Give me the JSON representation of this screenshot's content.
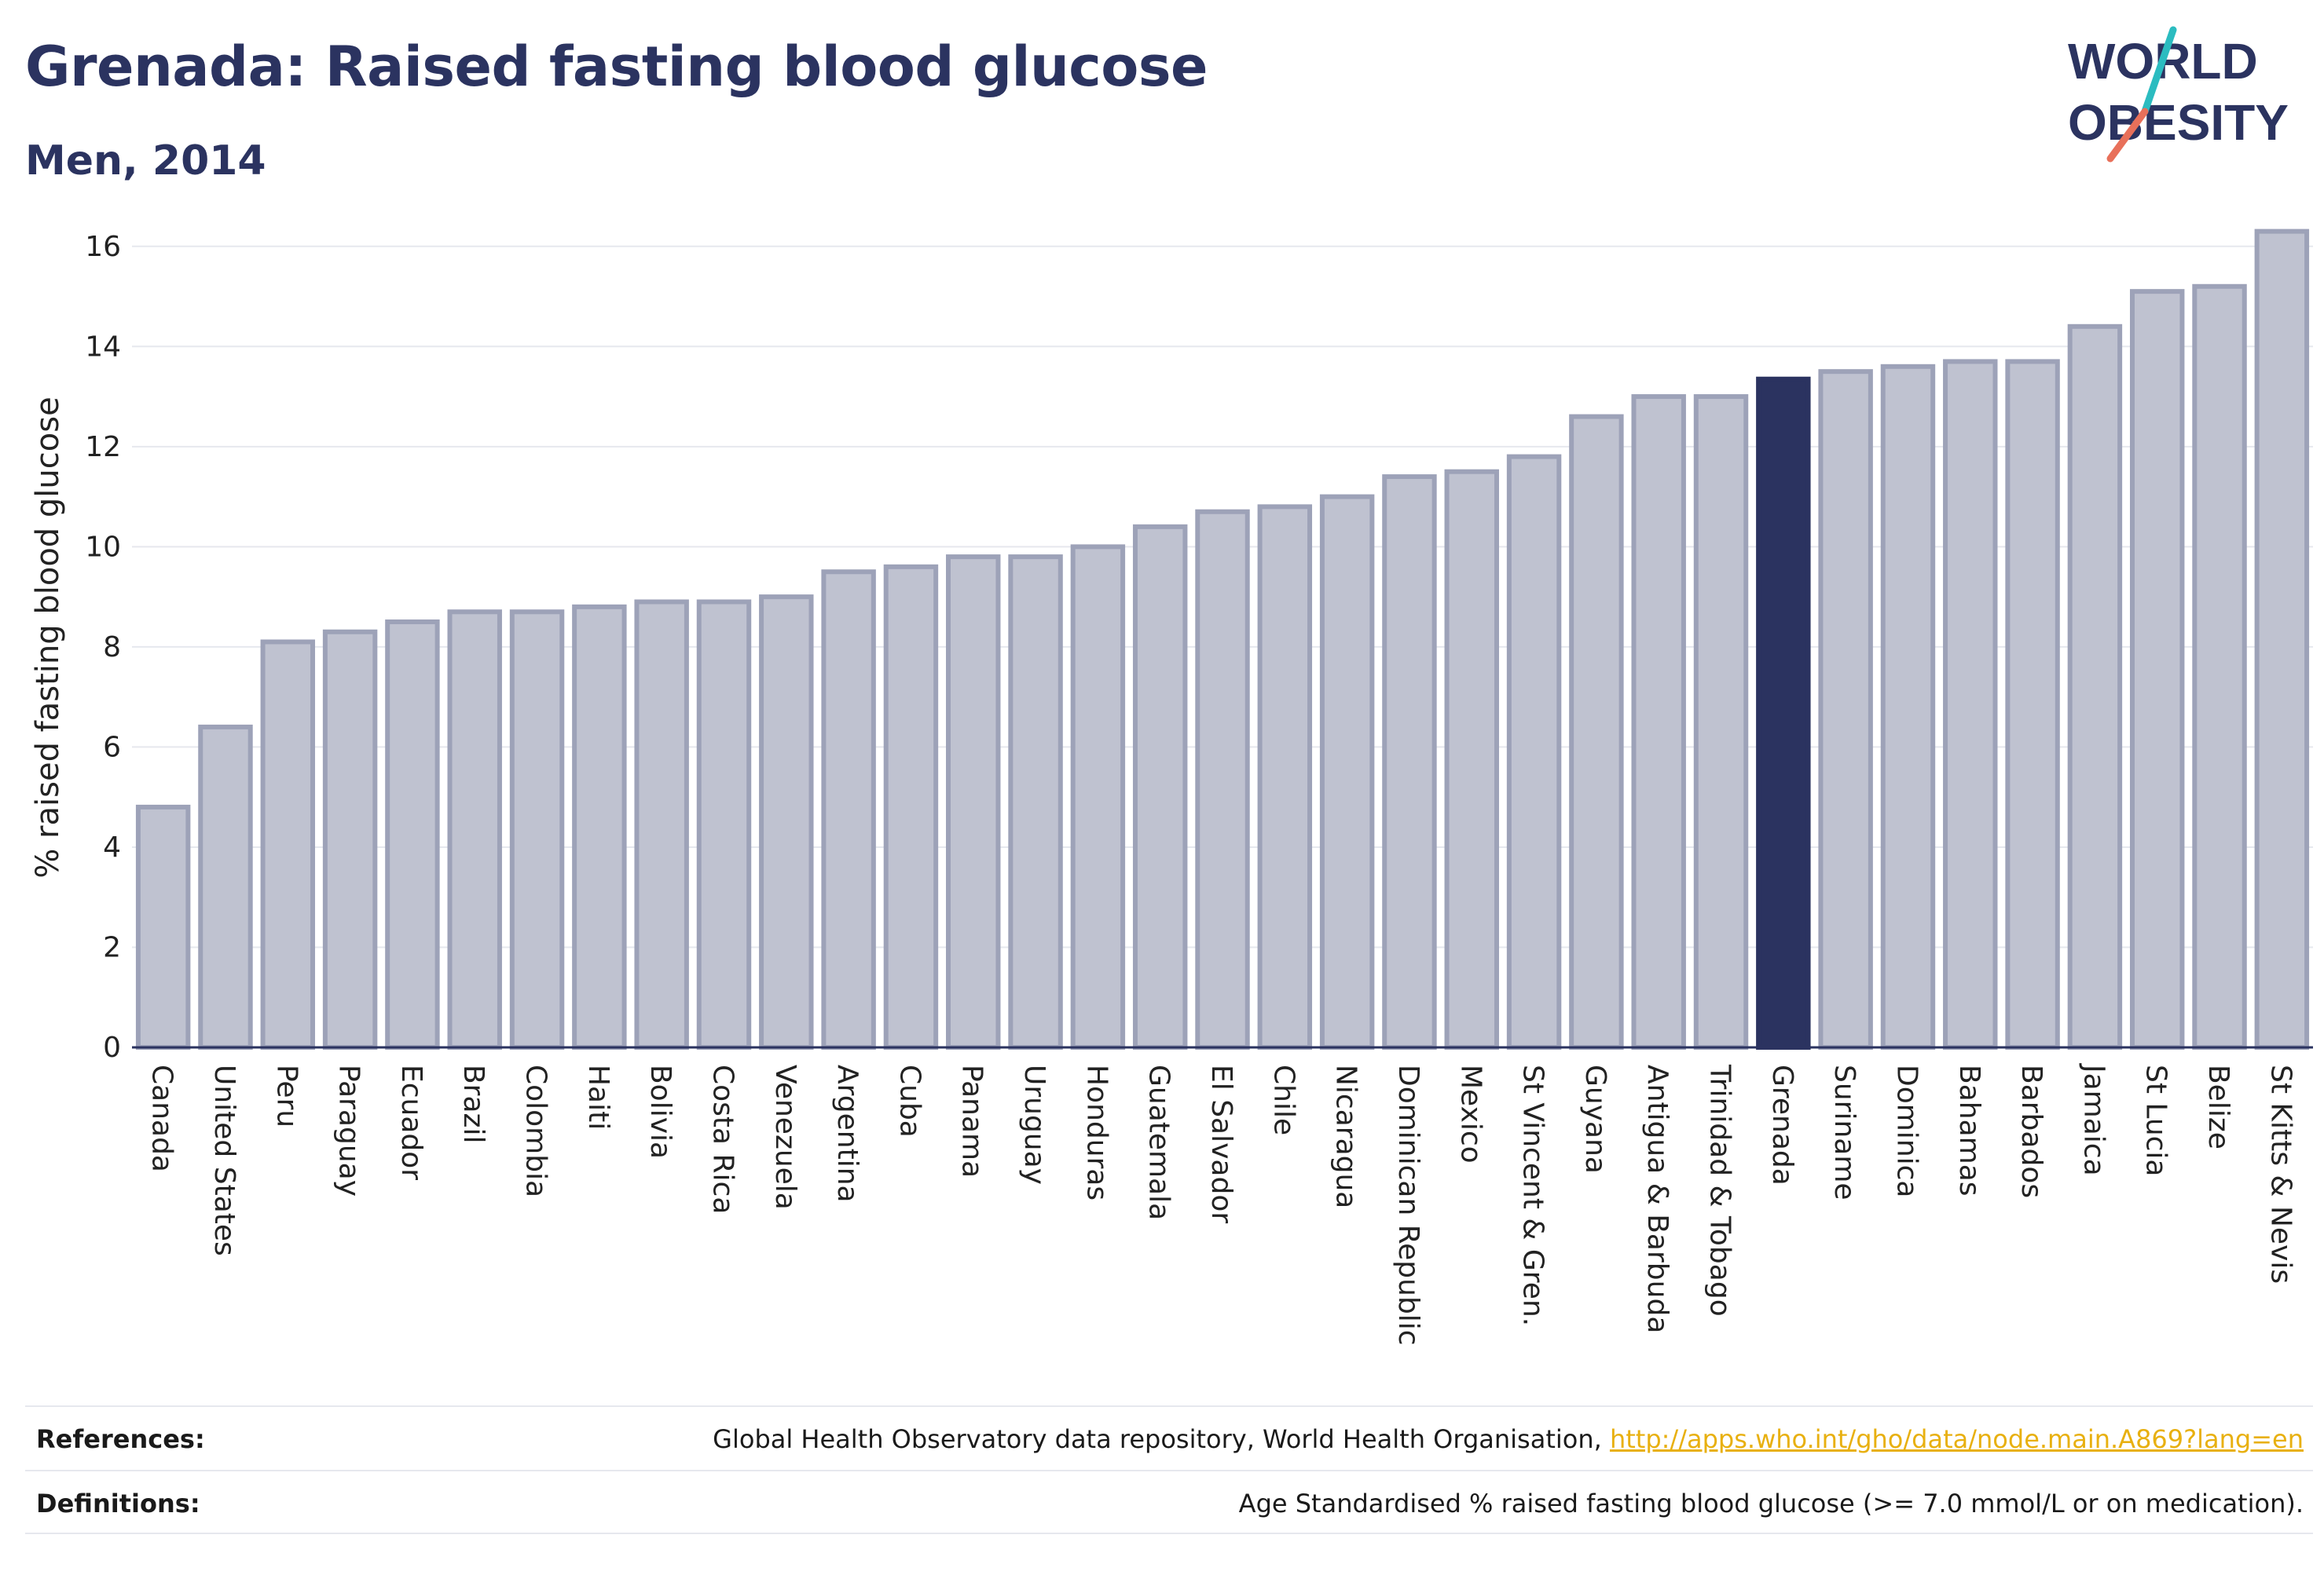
{
  "header": {
    "title": "Grenada: Raised fasting blood glucose",
    "subtitle": "Men, 2014"
  },
  "logo": {
    "line1": "WORLD",
    "line2": "OBESITY",
    "accent_teal": "#2bbcc0",
    "accent_coral": "#e8705a",
    "text_color": "#2b3360"
  },
  "colors": {
    "highlight_bar": "#2b3360",
    "bar_fill": "#bfc2d0",
    "bar_stroke": "#9da2b8",
    "grid": "#e6e8ee"
  },
  "chart_data": {
    "type": "bar",
    "title": "Grenada: Raised fasting blood glucose",
    "subtitle": "Men, 2014",
    "xlabel": "",
    "ylabel": "% raised fasting blood glucose",
    "ylim": [
      0,
      17
    ],
    "yticks": [
      0,
      2,
      4,
      6,
      8,
      10,
      12,
      14,
      16
    ],
    "grid": true,
    "highlight": "Grenada",
    "categories": [
      "Canada",
      "United States",
      "Peru",
      "Paraguay",
      "Ecuador",
      "Brazil",
      "Colombia",
      "Haiti",
      "Bolivia",
      "Costa Rica",
      "Venezuela",
      "Argentina",
      "Cuba",
      "Panama",
      "Uruguay",
      "Honduras",
      "Guatemala",
      "El Salvador",
      "Chile",
      "Nicaragua",
      "Dominican Republic",
      "Mexico",
      "St Vincent & Gren.",
      "Guyana",
      "Antigua & Barbuda",
      "Trinidad & Tobago",
      "Grenada",
      "Suriname",
      "Dominica",
      "Bahamas",
      "Barbados",
      "Jamaica",
      "St Lucia",
      "Belize",
      "St Kitts & Nevis"
    ],
    "values": [
      4.8,
      6.4,
      8.1,
      8.3,
      8.5,
      8.7,
      8.7,
      8.8,
      8.9,
      8.9,
      9.0,
      9.5,
      9.6,
      9.8,
      9.8,
      10.0,
      10.4,
      10.7,
      10.8,
      11.0,
      11.4,
      11.5,
      11.8,
      12.6,
      13.0,
      13.0,
      13.35,
      13.5,
      13.6,
      13.7,
      13.7,
      14.4,
      15.1,
      15.2,
      16.3
    ]
  },
  "footer": {
    "references_label": "References:",
    "references_text": "Global Health Observatory data repository, World Health Organisation, ",
    "references_link": "http://apps.who.int/gho/data/node.main.A869?lang=en",
    "definitions_label": "Definitions:",
    "definitions_text": "Age Standardised % raised fasting blood glucose (>= 7.0 mmol/L or on medication)."
  }
}
